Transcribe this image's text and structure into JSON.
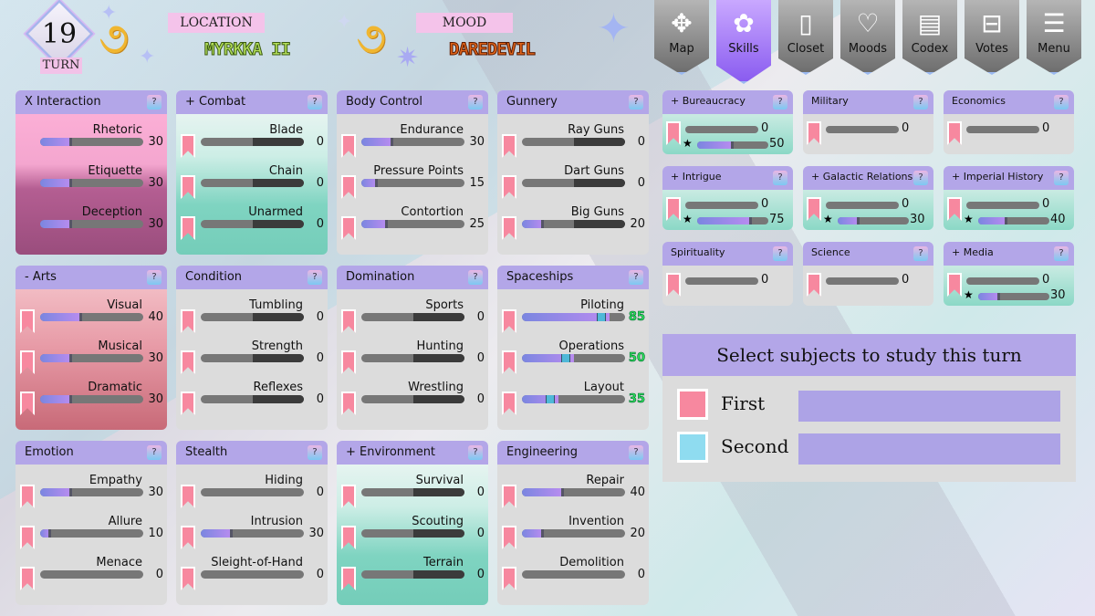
{
  "header": {
    "turn_number": "19",
    "turn_label": "TURN",
    "location_label": "LOCATION",
    "location_value": "MYRKKA II",
    "mood_label": "MOOD",
    "mood_value": "DAREDEVIL"
  },
  "nav": [
    {
      "label": "Map",
      "icon": "compass-icon",
      "glyph": "✥",
      "active": false
    },
    {
      "label": "Skills",
      "icon": "puzzle-icon",
      "glyph": "✿",
      "active": true
    },
    {
      "label": "Closet",
      "icon": "wardrobe-icon",
      "glyph": "▯",
      "active": false
    },
    {
      "label": "Moods",
      "icon": "brain-heart-icon",
      "glyph": "♡",
      "active": false
    },
    {
      "label": "Codex",
      "icon": "book-icon",
      "glyph": "▤",
      "active": false
    },
    {
      "label": "Votes",
      "icon": "ballot-box-icon",
      "glyph": "⊟",
      "active": false
    },
    {
      "label": "Menu",
      "icon": "menu-list-icon",
      "glyph": "☰",
      "active": false
    }
  ],
  "colors": {
    "header": "#b3a6e8",
    "bookmark": "#f7889f",
    "first": "#f7889f",
    "second": "#8fdcf0",
    "high_value": "#2fe05a"
  },
  "panels": [
    {
      "title": "X Interaction",
      "theme": "pink",
      "bookmarks": false,
      "skills": [
        {
          "name": "Rhetoric",
          "value": 30
        },
        {
          "name": "Etiquette",
          "value": 30
        },
        {
          "name": "Deception",
          "value": 30
        }
      ]
    },
    {
      "title": "+ Combat",
      "theme": "teal",
      "bookmarks": true,
      "skills": [
        {
          "name": "Blade",
          "value": 0
        },
        {
          "name": "Chain",
          "value": 0
        },
        {
          "name": "Unarmed",
          "value": 0
        }
      ]
    },
    {
      "title": "Body Control",
      "theme": "gray",
      "bookmarks": true,
      "skills": [
        {
          "name": "Endurance",
          "value": 30
        },
        {
          "name": "Pressure Points",
          "value": 15
        },
        {
          "name": "Contortion",
          "value": 25
        }
      ]
    },
    {
      "title": "Gunnery",
      "theme": "gray",
      "bookmarks": true,
      "skills": [
        {
          "name": "Ray Guns",
          "value": 0
        },
        {
          "name": "Dart Guns",
          "value": 0
        },
        {
          "name": "Big Guns",
          "value": 20
        }
      ]
    },
    {
      "title": "- Arts",
      "theme": "rose",
      "bookmarks": true,
      "skills": [
        {
          "name": "Visual",
          "value": 40
        },
        {
          "name": "Musical",
          "value": 30
        },
        {
          "name": "Dramatic",
          "value": 30
        }
      ]
    },
    {
      "title": "Condition",
      "theme": "gray",
      "bookmarks": true,
      "skills": [
        {
          "name": "Tumbling",
          "value": 0
        },
        {
          "name": "Strength",
          "value": 0
        },
        {
          "name": "Reflexes",
          "value": 0
        }
      ]
    },
    {
      "title": "Domination",
      "theme": "gray",
      "bookmarks": true,
      "skills": [
        {
          "name": "Sports",
          "value": 0
        },
        {
          "name": "Hunting",
          "value": 0
        },
        {
          "name": "Wrestling",
          "value": 0
        }
      ]
    },
    {
      "title": "Spaceships",
      "theme": "gray",
      "bookmarks": true,
      "highlight": true,
      "skills": [
        {
          "name": "Piloting",
          "value": 85
        },
        {
          "name": "Operations",
          "value": 50
        },
        {
          "name": "Layout",
          "value": 35
        }
      ]
    },
    {
      "title": "Emotion",
      "theme": "gray",
      "bookmarks": true,
      "skills": [
        {
          "name": "Empathy",
          "value": 30
        },
        {
          "name": "Allure",
          "value": 10
        },
        {
          "name": "Menace",
          "value": 0
        }
      ]
    },
    {
      "title": "Stealth",
      "theme": "gray",
      "bookmarks": true,
      "skills": [
        {
          "name": "Hiding",
          "value": 0
        },
        {
          "name": "Intrusion",
          "value": 30
        },
        {
          "name": "Sleight-of-Hand",
          "value": 0
        }
      ]
    },
    {
      "title": "+ Environment",
      "theme": "teal",
      "bookmarks": true,
      "skills": [
        {
          "name": "Survival",
          "value": 0
        },
        {
          "name": "Scouting",
          "value": 0
        },
        {
          "name": "Terrain",
          "value": 0
        }
      ]
    },
    {
      "title": "Engineering",
      "theme": "gray",
      "bookmarks": true,
      "skills": [
        {
          "name": "Repair",
          "value": 40
        },
        {
          "name": "Invention",
          "value": 20
        },
        {
          "name": "Demolition",
          "value": 0
        }
      ]
    }
  ],
  "subjects": [
    {
      "title": "+ Bureaucracy",
      "value": 0,
      "star_value": 50
    },
    {
      "title": "Military",
      "value": 0
    },
    {
      "title": "Economics",
      "value": 0
    },
    {
      "title": "+ Intrigue",
      "value": 0,
      "star_value": 75
    },
    {
      "title": "+ Galactic Relations",
      "value": 0,
      "star_value": 30
    },
    {
      "title": "+ Imperial History",
      "value": 0,
      "star_value": 40
    },
    {
      "title": "Spirituality",
      "value": 0
    },
    {
      "title": "Science",
      "value": 0
    },
    {
      "title": "+ Media",
      "value": 0,
      "star_value": 30
    }
  ],
  "study": {
    "title": "Select subjects to study this turn",
    "first_label": "First",
    "second_label": "Second",
    "first_value": "",
    "second_value": ""
  },
  "help_label": "?",
  "star_glyph": "★"
}
